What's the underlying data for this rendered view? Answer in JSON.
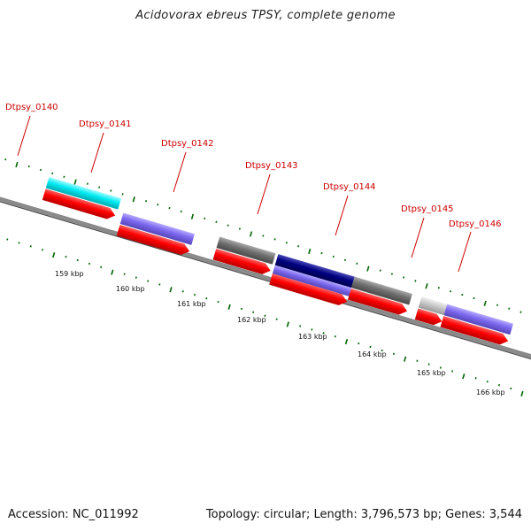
{
  "title": "Acidovorax ebreus TPSY, complete genome",
  "footer": {
    "accession": "Accession: NC_011992",
    "summary": "Topology: circular; Length: 3,796,573 bp; Genes: 3,544"
  },
  "colors": {
    "red": "#ff0000",
    "cyan": "#00e5ee",
    "slate": "#7b68ee",
    "gray": "#6f6f6f",
    "navy": "#000080",
    "light_gray": "#c8c8c8",
    "tick_green": "#006400",
    "label_red": "#cc0000",
    "backbone": "#8a8a8a"
  },
  "gene_labels": [
    "Dtpsy_0140",
    "Dtpsy_0141",
    "Dtpsy_0142",
    "Dtpsy_0143",
    "Dtpsy_0144",
    "Dtpsy_0145",
    "Dtpsy_0146"
  ],
  "kbp_labels": [
    "159 kbp",
    "160 kbp",
    "161 kbp",
    "162 kbp",
    "163 kbp",
    "164 kbp",
    "165 kbp",
    "166 kbp"
  ]
}
